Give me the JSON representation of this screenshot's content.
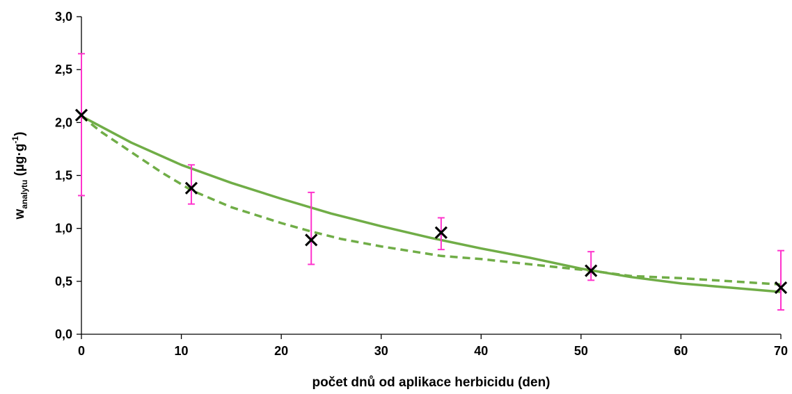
{
  "chart_data": {
    "type": "scatter",
    "xlabel": "počet dnů od aplikace herbicidu (den)",
    "ylabel": {
      "main": "w",
      "sub": "analytu",
      "unit_open": " (µg·g",
      "unit_sup": "-1",
      "unit_close": ")"
    },
    "xlim": [
      0,
      70
    ],
    "ylim": [
      0,
      3
    ],
    "x_ticks": [
      0,
      10,
      20,
      30,
      40,
      50,
      60,
      70
    ],
    "x_tick_labels": [
      "0",
      "10",
      "20",
      "30",
      "40",
      "50",
      "60",
      "70"
    ],
    "y_ticks": [
      0,
      0.5,
      1,
      1.5,
      2,
      2.5,
      3
    ],
    "y_tick_labels": [
      "0,0",
      "0,5",
      "1,0",
      "1,5",
      "2,0",
      "2,5",
      "3,0"
    ],
    "grid": false,
    "legend": false,
    "measurements": {
      "marker": "x",
      "color": "#000000",
      "x": [
        0,
        11,
        23,
        36,
        51,
        70
      ],
      "y": [
        2.07,
        1.38,
        0.89,
        0.96,
        0.6,
        0.44
      ],
      "error_low": [
        1.31,
        1.23,
        0.66,
        0.8,
        0.51,
        0.23
      ],
      "error_high": [
        2.65,
        1.6,
        1.34,
        1.1,
        0.78,
        0.79
      ],
      "error_color": "#ff33cc"
    },
    "fits": [
      {
        "style": "solid",
        "color": "#70ad47",
        "x": [
          0,
          5,
          10,
          15,
          20,
          25,
          30,
          35,
          40,
          45,
          50,
          55,
          60,
          65,
          70
        ],
        "y": [
          2.06,
          1.81,
          1.6,
          1.43,
          1.28,
          1.14,
          1.02,
          0.91,
          0.81,
          0.72,
          0.62,
          0.54,
          0.48,
          0.44,
          0.4
        ]
      },
      {
        "style": "dashed",
        "color": "#70ad47",
        "x": [
          0,
          2,
          5,
          8,
          11,
          15,
          20,
          23,
          26,
          30,
          36,
          40,
          45,
          51,
          55,
          60,
          65,
          70
        ],
        "y": [
          2.06,
          1.91,
          1.72,
          1.53,
          1.36,
          1.2,
          1.05,
          0.97,
          0.9,
          0.83,
          0.74,
          0.71,
          0.66,
          0.6,
          0.55,
          0.53,
          0.5,
          0.47
        ]
      }
    ]
  }
}
